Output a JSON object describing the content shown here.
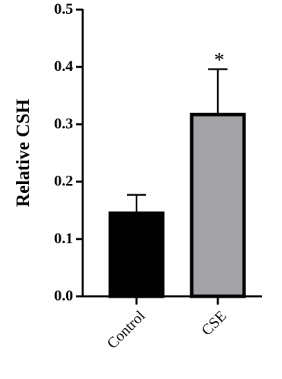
{
  "chart_data": {
    "type": "bar",
    "categories": [
      "Control",
      "CSE"
    ],
    "values": [
      0.145,
      0.317
    ],
    "errors": [
      0.032,
      0.079
    ],
    "colors": [
      "#000000",
      "#a3a3a7"
    ],
    "annotations": [
      null,
      "*"
    ],
    "y_label": "Relative CSH",
    "ylim": [
      0,
      0.5
    ],
    "yticks": [
      {
        "value": 0,
        "label": "0.0"
      },
      0.1,
      0.2,
      0.3,
      0.4,
      0.5
    ]
  }
}
